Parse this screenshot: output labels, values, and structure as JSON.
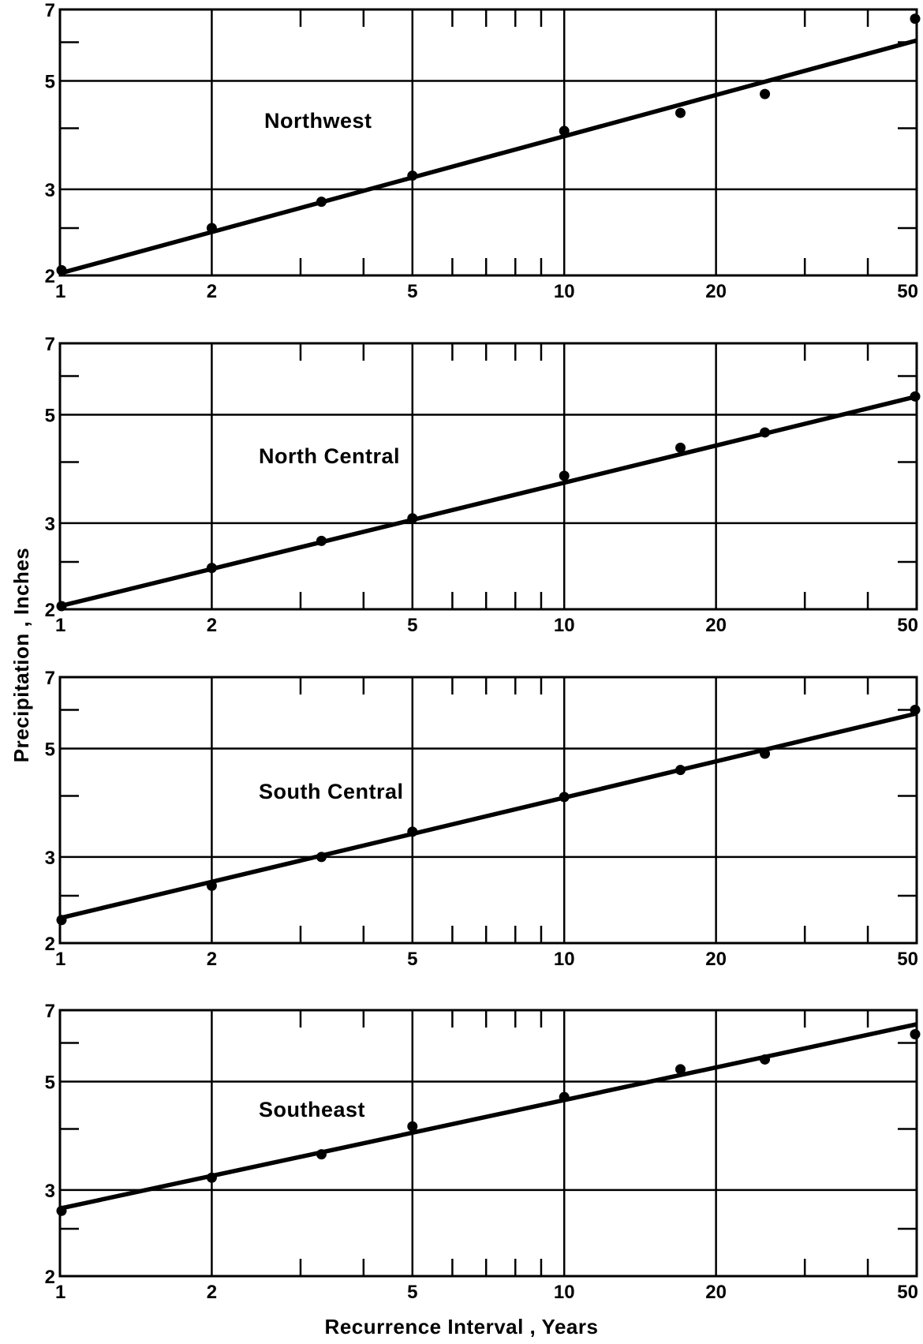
{
  "chart_data": [
    {
      "type": "scatter",
      "label": "Northwest",
      "x_scale": "log",
      "y_scale": "log",
      "xlim": [
        1,
        50
      ],
      "ylim": [
        2,
        7
      ],
      "x_tick_labels": [
        "1",
        "2",
        "5",
        "10",
        "20",
        "50"
      ],
      "y_tick_labels": [
        "2",
        "3",
        "5",
        "7"
      ],
      "points": [
        {
          "x": 1,
          "y": 2.05
        },
        {
          "x": 2,
          "y": 2.5
        },
        {
          "x": 3.3,
          "y": 2.83
        },
        {
          "x": 5,
          "y": 3.2
        },
        {
          "x": 10,
          "y": 3.95
        },
        {
          "x": 17,
          "y": 4.3
        },
        {
          "x": 25,
          "y": 4.7
        },
        {
          "x": 50,
          "y": 6.7
        }
      ],
      "fit_line": [
        {
          "x": 1,
          "y": 2.02
        },
        {
          "x": 50,
          "y": 6.05
        }
      ]
    },
    {
      "type": "scatter",
      "label": "North Central",
      "x_scale": "log",
      "y_scale": "log",
      "xlim": [
        1,
        50
      ],
      "ylim": [
        2,
        7
      ],
      "x_tick_labels": [
        "1",
        "2",
        "5",
        "10",
        "20",
        "50"
      ],
      "y_tick_labels": [
        "2",
        "3",
        "5",
        "7"
      ],
      "points": [
        {
          "x": 1,
          "y": 2.03
        },
        {
          "x": 2,
          "y": 2.43
        },
        {
          "x": 3.3,
          "y": 2.76
        },
        {
          "x": 5,
          "y": 3.07
        },
        {
          "x": 10,
          "y": 3.75
        },
        {
          "x": 17,
          "y": 4.28
        },
        {
          "x": 25,
          "y": 4.6
        },
        {
          "x": 50,
          "y": 5.45
        }
      ],
      "fit_line": [
        {
          "x": 1,
          "y": 2.03
        },
        {
          "x": 50,
          "y": 5.45
        }
      ]
    },
    {
      "type": "scatter",
      "label": "South Central",
      "x_scale": "log",
      "y_scale": "log",
      "xlim": [
        1,
        50
      ],
      "ylim": [
        2,
        7
      ],
      "x_tick_labels": [
        "1",
        "2",
        "5",
        "10",
        "20",
        "50"
      ],
      "y_tick_labels": [
        "2",
        "3",
        "5",
        "7"
      ],
      "points": [
        {
          "x": 1,
          "y": 2.23
        },
        {
          "x": 2,
          "y": 2.62
        },
        {
          "x": 3.3,
          "y": 3.0
        },
        {
          "x": 5,
          "y": 3.38
        },
        {
          "x": 10,
          "y": 3.98
        },
        {
          "x": 17,
          "y": 4.52
        },
        {
          "x": 25,
          "y": 4.88
        },
        {
          "x": 50,
          "y": 6.0
        }
      ],
      "fit_line": [
        {
          "x": 1,
          "y": 2.25
        },
        {
          "x": 50,
          "y": 5.9
        }
      ]
    },
    {
      "type": "scatter",
      "label": "Southeast",
      "x_scale": "log",
      "y_scale": "log",
      "xlim": [
        1,
        50
      ],
      "ylim": [
        2,
        7
      ],
      "x_tick_labels": [
        "1",
        "2",
        "5",
        "10",
        "20",
        "50"
      ],
      "y_tick_labels": [
        "2",
        "3",
        "5",
        "7"
      ],
      "points": [
        {
          "x": 1,
          "y": 2.72
        },
        {
          "x": 2,
          "y": 3.18
        },
        {
          "x": 3.3,
          "y": 3.55
        },
        {
          "x": 5,
          "y": 4.05
        },
        {
          "x": 10,
          "y": 4.65
        },
        {
          "x": 17,
          "y": 5.3
        },
        {
          "x": 25,
          "y": 5.55
        },
        {
          "x": 50,
          "y": 6.25
        }
      ],
      "fit_line": [
        {
          "x": 1,
          "y": 2.75
        },
        {
          "x": 50,
          "y": 6.55
        }
      ]
    }
  ],
  "x_axis_title": "Recurrence   Interval  , Years",
  "y_axis_title": "Precipitation , Inches"
}
